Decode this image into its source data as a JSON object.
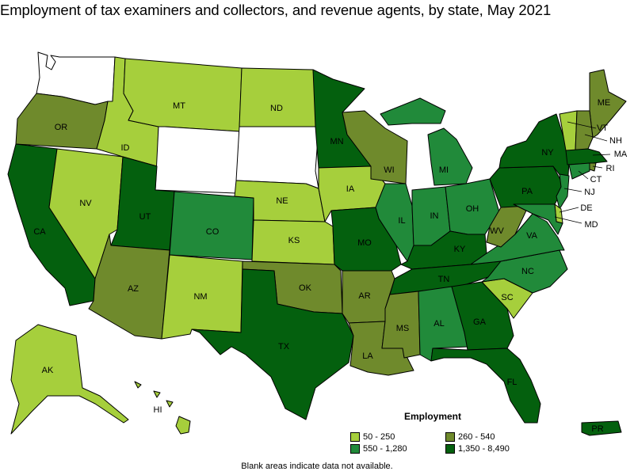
{
  "title": "Employment of tax examiners and collectors, and revenue agents, by state, May 2021",
  "legend": {
    "title": "Employment",
    "items": [
      {
        "label": "50 - 250",
        "color": "#a6cf3c"
      },
      {
        "label": "260 - 540",
        "color": "#6f8a2c"
      },
      {
        "label": "550 - 1,280",
        "color": "#218a3a"
      },
      {
        "label": "1,350 - 8,490",
        "color": "#04600e"
      }
    ]
  },
  "note": "Blank areas indicate data not available.",
  "colors": {
    "no_data": "#ffffff",
    "outline": "#000000"
  },
  "states": {
    "WA": {
      "label": "",
      "class": "none"
    },
    "OR": {
      "label": "OR",
      "class": 1
    },
    "CA": {
      "label": "CA",
      "class": 3
    },
    "NV": {
      "label": "NV",
      "class": 0
    },
    "ID": {
      "label": "ID",
      "class": 0
    },
    "MT": {
      "label": "MT",
      "class": 0
    },
    "WY": {
      "label": "",
      "class": "none"
    },
    "UT": {
      "label": "UT",
      "class": 3
    },
    "AZ": {
      "label": "AZ",
      "class": 1
    },
    "CO": {
      "label": "CO",
      "class": 2
    },
    "NM": {
      "label": "NM",
      "class": 0
    },
    "ND": {
      "label": "ND",
      "class": 0
    },
    "SD": {
      "label": "",
      "class": "none"
    },
    "NE": {
      "label": "NE",
      "class": 0
    },
    "KS": {
      "label": "KS",
      "class": 0
    },
    "OK": {
      "label": "OK",
      "class": 1
    },
    "TX": {
      "label": "TX",
      "class": 3
    },
    "MN": {
      "label": "MN",
      "class": 3
    },
    "IA": {
      "label": "IA",
      "class": 0
    },
    "MO": {
      "label": "MO",
      "class": 3
    },
    "AR": {
      "label": "AR",
      "class": 1
    },
    "LA": {
      "label": "LA",
      "class": 1
    },
    "WI": {
      "label": "WI",
      "class": 1
    },
    "IL": {
      "label": "IL",
      "class": 2
    },
    "MI": {
      "label": "MI",
      "class": 2
    },
    "IN": {
      "label": "IN",
      "class": 2
    },
    "OH": {
      "label": "OH",
      "class": 2
    },
    "KY": {
      "label": "KY",
      "class": 3
    },
    "TN": {
      "label": "TN",
      "class": 3
    },
    "MS": {
      "label": "MS",
      "class": 1
    },
    "AL": {
      "label": "AL",
      "class": 2
    },
    "GA": {
      "label": "GA",
      "class": 3
    },
    "FL": {
      "label": "FL",
      "class": 3
    },
    "SC": {
      "label": "SC",
      "class": 0
    },
    "NC": {
      "label": "NC",
      "class": 2
    },
    "VA": {
      "label": "VA",
      "class": 2
    },
    "WV": {
      "label": "WV",
      "class": 1
    },
    "PA": {
      "label": "PA",
      "class": 3
    },
    "NY": {
      "label": "NY",
      "class": 3
    },
    "ME": {
      "label": "ME",
      "class": 1
    },
    "VT": {
      "label": "VT",
      "class": 0
    },
    "NH": {
      "label": "NH",
      "class": 1
    },
    "MA": {
      "label": "MA",
      "class": 3
    },
    "RI": {
      "label": "RI",
      "class": 1
    },
    "CT": {
      "label": "CT",
      "class": 2
    },
    "NJ": {
      "label": "NJ",
      "class": 2
    },
    "DE": {
      "label": "DE",
      "class": 0
    },
    "MD": {
      "label": "MD",
      "class": 2
    },
    "AK": {
      "label": "AK",
      "class": 0
    },
    "HI": {
      "label": "HI",
      "class": 0
    },
    "PR": {
      "label": "PR",
      "class": 3
    }
  }
}
